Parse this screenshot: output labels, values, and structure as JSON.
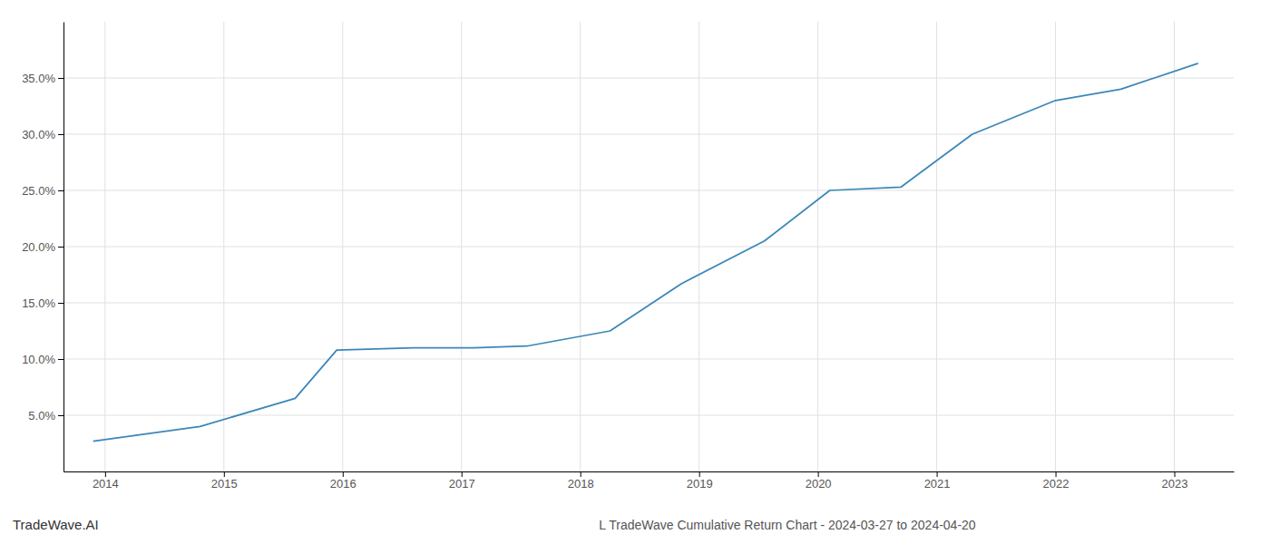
{
  "chart_data": {
    "type": "line",
    "title": "L TradeWave Cumulative Return Chart - 2024-03-27 to 2024-04-20",
    "annotations": [
      "TradeWave.AI"
    ],
    "x": [
      2013.9,
      2014.8,
      2015.6,
      2015.95,
      2016.6,
      2017.1,
      2017.55,
      2018.25,
      2018.85,
      2019.55,
      2020.1,
      2020.7,
      2021.3,
      2022.0,
      2022.55,
      2023.2
    ],
    "values": [
      2.7,
      4.0,
      6.5,
      10.8,
      11.0,
      11.0,
      11.15,
      12.5,
      16.7,
      20.5,
      25.0,
      25.3,
      30.0,
      33.0,
      34.0,
      36.3
    ],
    "color": "#3a87b8",
    "xlim": [
      2013.65,
      2023.5
    ],
    "xticks": [
      2014,
      2015,
      2016,
      2017,
      2018,
      2019,
      2020,
      2021,
      2022,
      2023
    ],
    "ylim": [
      0,
      40
    ],
    "yticks": [
      {
        "value": 5.0,
        "label": "5.0%"
      },
      {
        "value": 10.0,
        "label": "10.0%"
      },
      {
        "value": 15.0,
        "label": "15.0%"
      },
      {
        "value": 20.0,
        "label": "20.0%"
      },
      {
        "value": 25.0,
        "label": "25.0%"
      },
      {
        "value": 30.0,
        "label": "30.0%"
      },
      {
        "value": 35.0,
        "label": "35.0%"
      }
    ],
    "grid": true
  }
}
